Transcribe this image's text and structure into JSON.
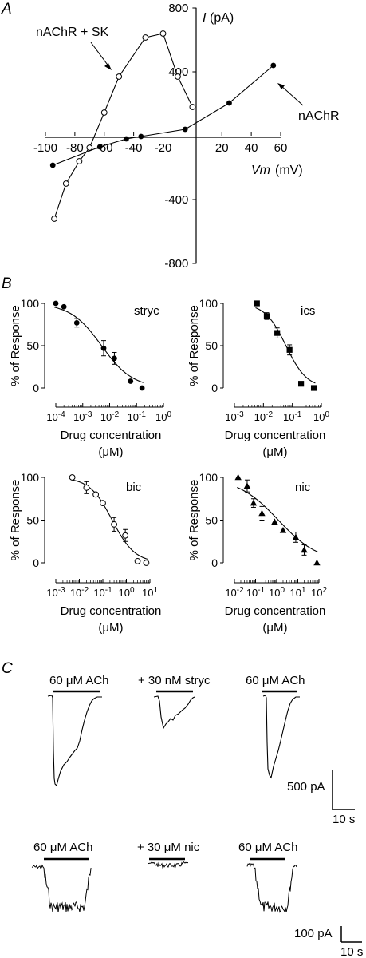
{
  "panels": {
    "a": "A",
    "b": "B",
    "c": "C"
  },
  "chart_data": [
    {
      "id": "A",
      "type": "line",
      "xlabel": "Vm",
      "xunit": "(mV)",
      "ylabel": "I",
      "yunit": "(pA)",
      "xlim": [
        -100,
        60
      ],
      "ylim": [
        -800,
        800
      ],
      "xticks": [
        -100,
        -80,
        -60,
        -40,
        -20,
        20,
        40,
        60
      ],
      "yticks": [
        -800,
        -400,
        400,
        800
      ],
      "series": [
        {
          "name": "nAChR + SK",
          "marker": "open-circle",
          "x": [
            -94,
            -86,
            -77,
            -70,
            -60,
            -50,
            -32,
            -20,
            -10,
            0
          ],
          "y": [
            -520,
            -300,
            -160,
            -75,
            145,
            370,
            615,
            640,
            370,
            180
          ]
        },
        {
          "name": "nAChR",
          "marker": "filled-circle",
          "x": [
            -95,
            -63,
            -45,
            -35,
            -5,
            25,
            55
          ],
          "y": [
            -185,
            -70,
            -20,
            -5,
            40,
            205,
            440
          ]
        }
      ]
    },
    {
      "id": "B-stryc",
      "type": "scatter",
      "label": "stryc",
      "ylabel": "% of Response",
      "xlabel": "Drug concentration",
      "xunit": "(μM)",
      "xscale": "log",
      "xlim_exp": [
        -4,
        0
      ],
      "ylim": [
        0,
        100
      ],
      "yticks": [
        0,
        50,
        100
      ],
      "xtick_labels": [
        "10-4",
        "10-3",
        "10-2",
        "10-1",
        "100"
      ],
      "marker": "filled-circle",
      "x": [
        0.0001,
        0.0002,
        0.0006,
        0.006,
        0.015,
        0.06,
        0.16
      ],
      "y": [
        100,
        96,
        77,
        47,
        35,
        8,
        0
      ],
      "err": [
        0,
        0,
        5,
        9,
        7,
        0,
        0
      ],
      "fit": {
        "top": 100,
        "bottom": 0,
        "ic50": 0.005,
        "hill": 0.75
      }
    },
    {
      "id": "B-ics",
      "type": "scatter",
      "label": "ics",
      "ylabel": "% of Response",
      "xlabel": "Drug concentration",
      "xunit": "(μM)",
      "xscale": "log",
      "xlim_exp": [
        -3,
        0
      ],
      "ylim": [
        0,
        100
      ],
      "yticks": [
        0,
        50,
        100
      ],
      "xtick_labels": [
        "10-3",
        "10-2",
        "10-1",
        "100"
      ],
      "marker": "filled-square",
      "x": [
        0.006,
        0.013,
        0.03,
        0.08,
        0.2,
        0.55
      ],
      "y": [
        100,
        85,
        65,
        45,
        5,
        0
      ],
      "err": [
        0,
        4,
        6,
        6,
        0,
        0
      ],
      "fit": {
        "top": 100,
        "bottom": 0,
        "ic50": 0.06,
        "hill": 1.2
      }
    },
    {
      "id": "B-bic",
      "type": "scatter",
      "label": "bic",
      "ylabel": "% of Response",
      "xlabel": "Drug concentration",
      "xunit": "(μM)",
      "xscale": "log",
      "xlim_exp": [
        -3,
        1
      ],
      "ylim": [
        0,
        100
      ],
      "yticks": [
        0,
        50,
        100
      ],
      "xtick_labels": [
        "10-3",
        "10-2",
        "10-1",
        "100",
        "101"
      ],
      "marker": "open-circle",
      "x": [
        0.005,
        0.02,
        0.05,
        0.1,
        0.3,
        0.9,
        3,
        7
      ],
      "y": [
        100,
        88,
        80,
        70,
        45,
        32,
        2,
        0
      ],
      "err": [
        0,
        7,
        0,
        0,
        8,
        7,
        0,
        0
      ],
      "fit": {
        "top": 100,
        "bottom": 0,
        "ic50": 0.25,
        "hill": 0.9
      }
    },
    {
      "id": "B-nic",
      "type": "scatter",
      "label": "nic",
      "ylabel": "% of Response",
      "xlabel": "Drug concentration",
      "xunit": "(μM)",
      "xscale": "log",
      "xlim_exp": [
        -2,
        2
      ],
      "ylim": [
        0,
        100
      ],
      "yticks": [
        0,
        50,
        100
      ],
      "xtick_labels": [
        "10-2",
        "10-1",
        "100",
        "101",
        "102"
      ],
      "marker": "filled-triangle",
      "x": [
        0.015,
        0.04,
        0.08,
        0.2,
        0.8,
        2,
        8,
        20,
        80
      ],
      "y": [
        100,
        90,
        70,
        58,
        48,
        38,
        30,
        15,
        0
      ],
      "err": [
        0,
        7,
        5,
        8,
        0,
        0,
        6,
        6,
        0
      ],
      "fit": {
        "top": 100,
        "bottom": 0,
        "ic50": 1.2,
        "hill": 0.45
      }
    }
  ],
  "traces": {
    "row1_labels": [
      "60 μM ACh",
      "+ 30 nM stryc",
      "60 μM ACh"
    ],
    "row2_labels": [
      "60 μM ACh",
      "+ 30 μM nic",
      "60 μM ACh"
    ],
    "scale1": {
      "amp": "500 pA",
      "time": "10 s"
    },
    "scale2": {
      "amp": "100 pA",
      "time": "10 s"
    }
  }
}
